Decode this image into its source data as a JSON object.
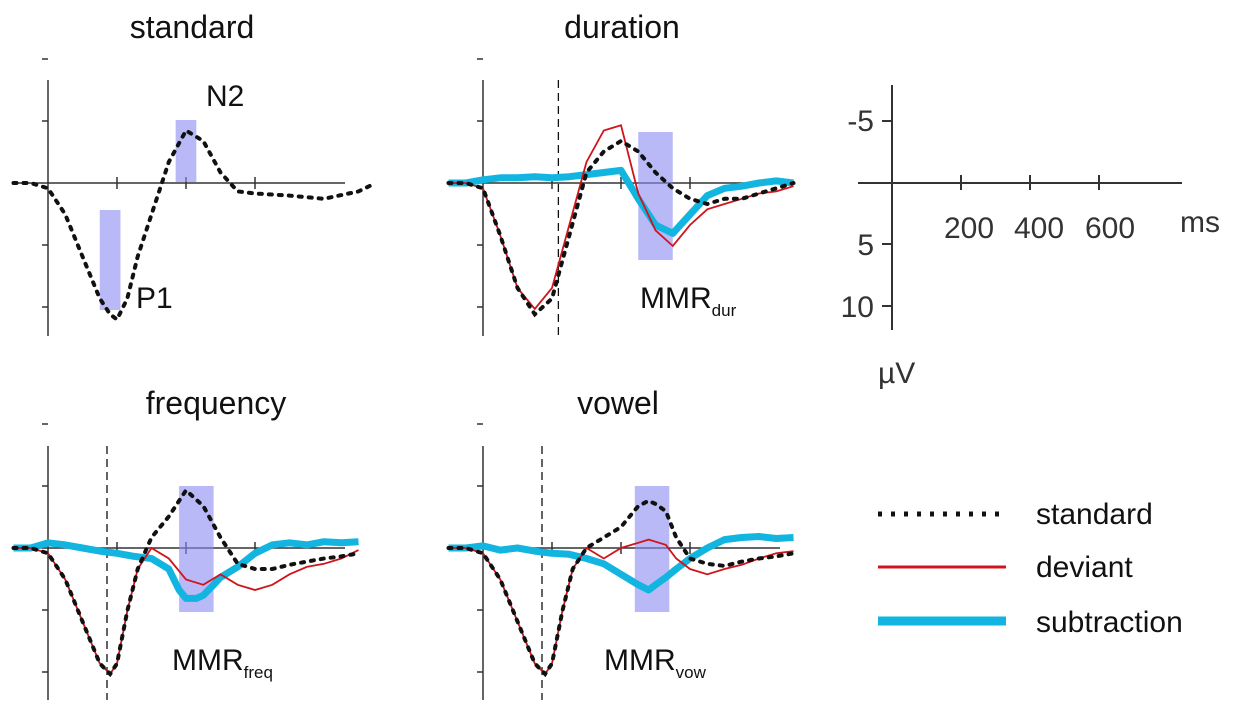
{
  "colors": {
    "standard": "#111111",
    "deviant": "#d0141c",
    "subtraction": "#12b4e0",
    "window": "#8b8bf2",
    "axis": "#333333"
  },
  "legend": {
    "standard": "standard",
    "deviant": "deviant",
    "subtraction": "subtraction"
  },
  "scale": {
    "y_ticks": [
      "-5",
      "5",
      "10"
    ],
    "x_ticks": [
      "200",
      "400",
      "600"
    ],
    "x_unit": "ms",
    "y_unit": "µV"
  },
  "chart_data": [
    {
      "type": "line",
      "panel": "standard",
      "title": "standard",
      "x_unit": "ms",
      "y_unit": "µV",
      "y_inverted": true,
      "stimulus_onset_ms": null,
      "peaks": [
        {
          "label": "P1",
          "main": "P1",
          "sub": ""
        },
        {
          "label": "N2",
          "main": "N2",
          "sub": ""
        }
      ],
      "windows": [
        {
          "label": "P1",
          "range_ms": [
            150,
            210
          ]
        },
        {
          "label": "N2",
          "range_ms": [
            370,
            430
          ]
        }
      ],
      "series": [
        {
          "name": "standard",
          "x": [
            -100,
            -50,
            0,
            50,
            100,
            150,
            180,
            200,
            230,
            260,
            300,
            350,
            400,
            450,
            500,
            550,
            600,
            700,
            800,
            900,
            950
          ],
          "y": [
            0,
            0,
            0.5,
            3,
            7,
            11,
            12.5,
            13,
            11,
            7,
            3,
            -2,
            -5,
            -4,
            -1,
            0.8,
            1,
            1.2,
            1.5,
            0.8,
            0
          ]
        }
      ]
    },
    {
      "type": "line",
      "panel": "duration",
      "title": "duration",
      "x_unit": "ms",
      "y_unit": "µV",
      "y_inverted": true,
      "stimulus_onset_ms": 230,
      "peaks": [
        {
          "label": "MMRdur",
          "main": "MMR",
          "sub": "dur"
        }
      ],
      "windows": [
        {
          "label": "MMRdur",
          "range_ms": [
            450,
            550
          ]
        }
      ],
      "series": [
        {
          "name": "standard",
          "x": [
            -100,
            -50,
            0,
            50,
            100,
            150,
            200,
            250,
            300,
            350,
            400,
            450,
            500,
            550,
            600,
            650,
            700,
            750,
            800,
            850,
            900
          ],
          "y": [
            0,
            0,
            0.5,
            5,
            10,
            12.5,
            11,
            5,
            -1,
            -3,
            -4,
            -3,
            -1,
            0.5,
            1.5,
            2,
            1.5,
            1.5,
            1,
            0.5,
            0
          ]
        },
        {
          "name": "deviant",
          "x": [
            -100,
            -50,
            0,
            50,
            100,
            150,
            200,
            250,
            300,
            350,
            400,
            450,
            500,
            550,
            600,
            650,
            700,
            750,
            800,
            850,
            900
          ],
          "y": [
            0,
            0,
            0.5,
            5,
            10,
            12,
            10,
            4,
            -2,
            -5,
            -5.5,
            1,
            4.5,
            6,
            4,
            2.5,
            2,
            1.5,
            1,
            0.8,
            0.3
          ]
        },
        {
          "name": "subtraction",
          "x": [
            -100,
            -50,
            0,
            50,
            100,
            150,
            200,
            250,
            300,
            350,
            400,
            450,
            500,
            550,
            600,
            650,
            700,
            750,
            800,
            850,
            900
          ],
          "y": [
            0,
            0,
            -0.3,
            -0.5,
            -0.5,
            -0.6,
            -0.5,
            -0.6,
            -0.8,
            -1,
            -1.2,
            1.5,
            4,
            4.8,
            3,
            1.2,
            0.5,
            0.3,
            0,
            -0.2,
            0
          ]
        }
      ]
    },
    {
      "type": "line",
      "panel": "frequency",
      "title": "frequency",
      "x_unit": "ms",
      "y_unit": "µV",
      "y_inverted": true,
      "stimulus_onset_ms": 180,
      "peaks": [
        {
          "label": "MMRfreq",
          "main": "MMR",
          "sub": "freq"
        }
      ],
      "windows": [
        {
          "label": "MMRfreq",
          "range_ms": [
            380,
            480
          ]
        }
      ],
      "series": [
        {
          "name": "standard",
          "x": [
            -100,
            -50,
            0,
            50,
            100,
            150,
            180,
            200,
            230,
            260,
            300,
            350,
            400,
            450,
            500,
            550,
            600,
            650,
            700,
            750,
            800,
            850,
            900
          ],
          "y": [
            0,
            0,
            0.5,
            3,
            7,
            11,
            12,
            11,
            6,
            2,
            -1,
            -3,
            -5.5,
            -4,
            -1,
            1.5,
            2,
            2,
            1.6,
            1.3,
            1,
            0.8,
            0.5
          ]
        },
        {
          "name": "deviant",
          "x": [
            -100,
            -50,
            0,
            50,
            100,
            150,
            180,
            200,
            230,
            260,
            300,
            350,
            400,
            450,
            500,
            550,
            600,
            650,
            700,
            750,
            800,
            850,
            900
          ],
          "y": [
            0,
            0,
            0.5,
            3,
            7,
            11,
            12,
            11,
            6,
            2,
            0,
            1,
            3,
            3.5,
            2.5,
            3.5,
            4,
            3.5,
            2.5,
            1.8,
            1.5,
            1,
            0.2
          ]
        },
        {
          "name": "subtraction",
          "x": [
            -100,
            -50,
            0,
            50,
            100,
            150,
            200,
            250,
            300,
            350,
            380,
            400,
            430,
            450,
            480,
            500,
            550,
            600,
            650,
            700,
            750,
            800,
            850,
            900
          ],
          "y": [
            0,
            0,
            -0.5,
            -0.3,
            0,
            0.3,
            0.5,
            0.8,
            1,
            2,
            4,
            4.8,
            4.8,
            4.5,
            3.5,
            2.8,
            1.8,
            0.5,
            -0.3,
            -0.5,
            -0.3,
            -0.6,
            -0.5,
            -0.6
          ]
        }
      ]
    },
    {
      "type": "line",
      "panel": "vowel",
      "title": "vowel",
      "x_unit": "ms",
      "y_unit": "µV",
      "y_inverted": true,
      "stimulus_onset_ms": 180,
      "peaks": [
        {
          "label": "MMRvow",
          "main": "MMR",
          "sub": "vow"
        }
      ],
      "windows": [
        {
          "label": "MMRvow",
          "range_ms": [
            440,
            540
          ]
        }
      ],
      "series": [
        {
          "name": "standard",
          "x": [
            -100,
            -50,
            0,
            50,
            100,
            150,
            180,
            200,
            230,
            260,
            300,
            350,
            400,
            450,
            480,
            500,
            530,
            560,
            600,
            650,
            700,
            750,
            800,
            850,
            900
          ],
          "y": [
            0,
            0,
            0.5,
            3,
            7,
            11,
            12,
            11,
            6,
            2,
            0,
            -1,
            -2,
            -4,
            -4.5,
            -4.2,
            -3.5,
            -1,
            1,
            1.5,
            1.7,
            1.3,
            1,
            0.8,
            0.5
          ]
        },
        {
          "name": "deviant",
          "x": [
            -100,
            -50,
            0,
            50,
            100,
            150,
            180,
            200,
            230,
            260,
            300,
            350,
            400,
            450,
            480,
            500,
            530,
            560,
            600,
            650,
            700,
            750,
            800,
            850,
            900
          ],
          "y": [
            0,
            0,
            0.5,
            3,
            7,
            11,
            12,
            11,
            6,
            2,
            0,
            1,
            0,
            -0.5,
            -0.8,
            -0.6,
            -0.3,
            1,
            2,
            2.5,
            2,
            1.6,
            1,
            0.5,
            0.3
          ]
        },
        {
          "name": "subtraction",
          "x": [
            -100,
            -50,
            0,
            50,
            100,
            150,
            200,
            250,
            300,
            350,
            400,
            450,
            480,
            500,
            530,
            560,
            600,
            650,
            700,
            750,
            800,
            850,
            900
          ],
          "y": [
            0,
            0,
            -0.2,
            0.2,
            0,
            0.3,
            0.5,
            0.6,
            1,
            1.5,
            2.5,
            3.5,
            4,
            3.5,
            2.8,
            2,
            1,
            0,
            -0.8,
            -1,
            -1.1,
            -0.9,
            -1
          ]
        }
      ]
    }
  ]
}
